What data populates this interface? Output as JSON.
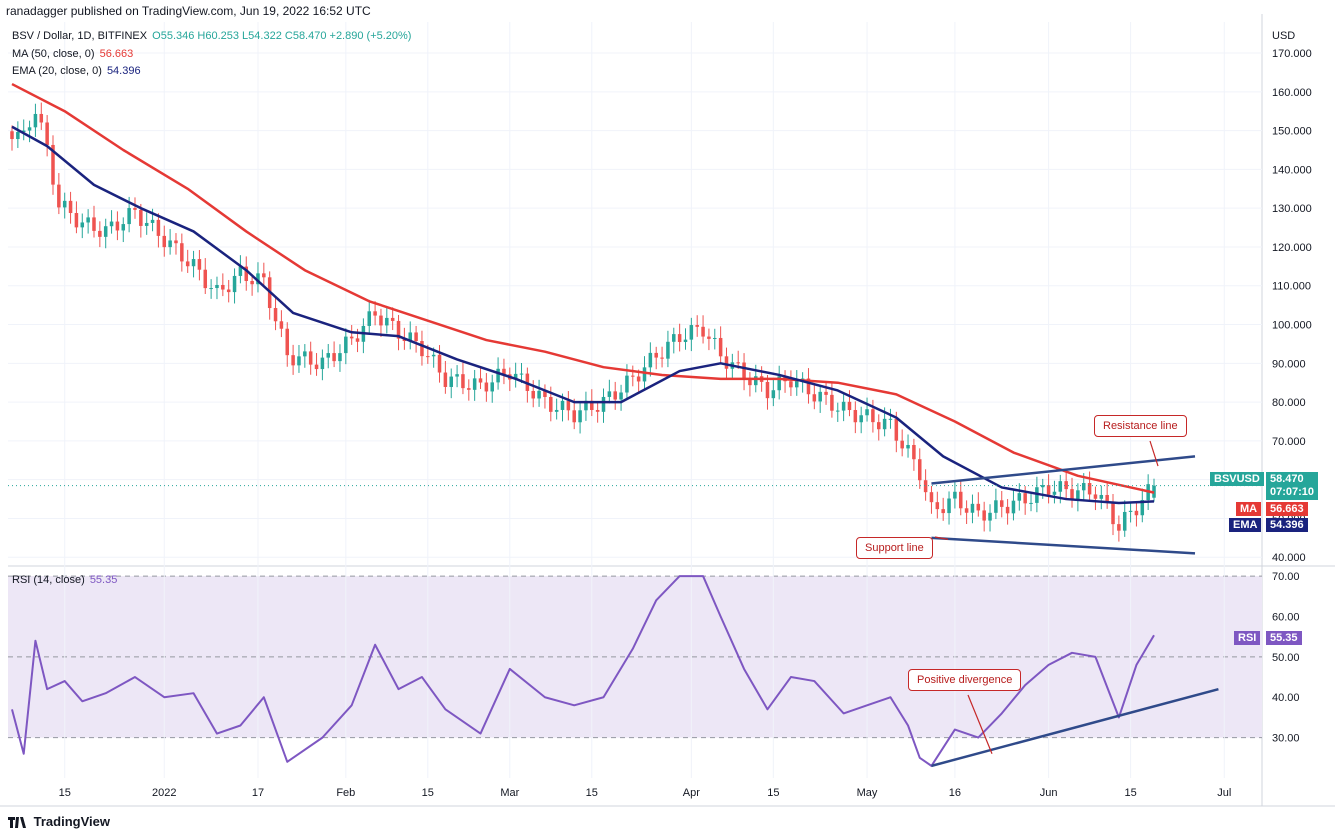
{
  "header": {
    "publisher": "ranadagger published on TradingView.com, Jun 19, 2022 16:52 UTC"
  },
  "legend": {
    "symbol": "BSV / Dollar, 1D, BITFINEX",
    "ohlc": "O55.346 H60.253 L54.322 C58.470 +2.890 (+5.20%)",
    "ma_label": "MA (50, close, 0)",
    "ma_value": "56.663",
    "ema_label": "EMA (20, close, 0)",
    "ema_value": "54.396",
    "rsi_label": "RSI (14, close)",
    "rsi_value": "55.35"
  },
  "footer": {
    "brand": "TradingView"
  },
  "price_labels": {
    "symbol": "BSVUSD",
    "last": "58.470",
    "countdown": "07:07:10",
    "ma_tag": "MA",
    "ma_val": "56.663",
    "ema_tag": "EMA",
    "ema_val": "54.396",
    "rsi_tag": "RSI",
    "rsi_val": "55.35"
  },
  "annotations": {
    "resistance": "Resistance line",
    "support": "Support line",
    "divergence": "Positive divergence"
  },
  "colors": {
    "up": "#26a69a",
    "down": "#ef5350",
    "ma": "#e53935",
    "ema": "#1a237e",
    "rsi": "#7e57c2",
    "rsi_band": "#ede7f6",
    "trendline": "#2f4a8a",
    "grid": "#f0f3fa"
  },
  "chart_data": [
    {
      "type": "candlestick",
      "title": "BSV / Dollar, 1D, BITFINEX",
      "currency": "USD",
      "ylim": [
        38,
        178
      ],
      "y_ticks": [
        "170.000",
        "160.000",
        "150.000",
        "140.000",
        "130.000",
        "120.000",
        "110.000",
        "100.000",
        "90.000",
        "80.000",
        "70.000",
        "60.000",
        "50.000",
        "40.000"
      ],
      "x_ticks": [
        "15",
        "2022",
        "17",
        "Feb",
        "15",
        "Mar",
        "15",
        "Apr",
        "15",
        "May",
        "16",
        "Jun",
        "15",
        "Jul"
      ],
      "close_anchors": [
        [
          "2021-12-06",
          150
        ],
        [
          "2021-12-08",
          148
        ],
        [
          "2021-12-10",
          156
        ],
        [
          "2021-12-12",
          145
        ],
        [
          "2021-12-14",
          131
        ],
        [
          "2021-12-18",
          126
        ],
        [
          "2021-12-22",
          124
        ],
        [
          "2021-12-27",
          129
        ],
        [
          "2022-01-01",
          122
        ],
        [
          "2022-01-06",
          115
        ],
        [
          "2022-01-10",
          108
        ],
        [
          "2022-01-14",
          113
        ],
        [
          "2022-01-18",
          111
        ],
        [
          "2022-01-22",
          92
        ],
        [
          "2022-01-28",
          90
        ],
        [
          "2022-02-02",
          96
        ],
        [
          "2022-02-06",
          103
        ],
        [
          "2022-02-10",
          98
        ],
        [
          "2022-02-14",
          94
        ],
        [
          "2022-02-18",
          86
        ],
        [
          "2022-02-24",
          84
        ],
        [
          "2022-03-01",
          88
        ],
        [
          "2022-03-07",
          80
        ],
        [
          "2022-03-12",
          77
        ],
        [
          "2022-03-17",
          80
        ],
        [
          "2022-03-22",
          86
        ],
        [
          "2022-03-26",
          92
        ],
        [
          "2022-03-30",
          97
        ],
        [
          "2022-04-03",
          99
        ],
        [
          "2022-04-06",
          92
        ],
        [
          "2022-04-10",
          87
        ],
        [
          "2022-04-14",
          83
        ],
        [
          "2022-04-18",
          86
        ],
        [
          "2022-04-22",
          82
        ],
        [
          "2022-04-27",
          78
        ],
        [
          "2022-05-01",
          76
        ],
        [
          "2022-05-05",
          74
        ],
        [
          "2022-05-08",
          67
        ],
        [
          "2022-05-10",
          62
        ],
        [
          "2022-05-12",
          52
        ],
        [
          "2022-05-16",
          55
        ],
        [
          "2022-05-20",
          51
        ],
        [
          "2022-05-24",
          53
        ],
        [
          "2022-05-28",
          55
        ],
        [
          "2022-06-01",
          58
        ],
        [
          "2022-06-05",
          57
        ],
        [
          "2022-06-09",
          57
        ],
        [
          "2022-06-13",
          48
        ],
        [
          "2022-06-16",
          53
        ],
        [
          "2022-06-19",
          58.47
        ]
      ],
      "series": [
        {
          "name": "MA (50, close, 0)",
          "style": "line",
          "points": [
            [
              "2021-12-06",
              162
            ],
            [
              "2021-12-15",
              155
            ],
            [
              "2021-12-25",
              145
            ],
            [
              "2022-01-05",
              135
            ],
            [
              "2022-01-15",
              124
            ],
            [
              "2022-01-25",
              114
            ],
            [
              "2022-02-05",
              106
            ],
            [
              "2022-02-15",
              101
            ],
            [
              "2022-02-25",
              96
            ],
            [
              "2022-03-07",
              93
            ],
            [
              "2022-03-17",
              89
            ],
            [
              "2022-03-27",
              87
            ],
            [
              "2022-04-06",
              86
            ],
            [
              "2022-04-16",
              86
            ],
            [
              "2022-04-26",
              85
            ],
            [
              "2022-05-06",
              82
            ],
            [
              "2022-05-16",
              75
            ],
            [
              "2022-05-26",
              67
            ],
            [
              "2022-06-06",
              61
            ],
            [
              "2022-06-19",
              56.663
            ]
          ]
        },
        {
          "name": "EMA (20, close, 0)",
          "style": "line",
          "points": [
            [
              "2021-12-06",
              151
            ],
            [
              "2021-12-12",
              146
            ],
            [
              "2021-12-20",
              136
            ],
            [
              "2021-12-28",
              130
            ],
            [
              "2022-01-06",
              124
            ],
            [
              "2022-01-15",
              114
            ],
            [
              "2022-01-23",
              103
            ],
            [
              "2022-02-02",
              98
            ],
            [
              "2022-02-10",
              97
            ],
            [
              "2022-02-20",
              91
            ],
            [
              "2022-03-02",
              86
            ],
            [
              "2022-03-12",
              80
            ],
            [
              "2022-03-20",
              80
            ],
            [
              "2022-03-30",
              88
            ],
            [
              "2022-04-06",
              90
            ],
            [
              "2022-04-16",
              87
            ],
            [
              "2022-04-26",
              83
            ],
            [
              "2022-05-06",
              76
            ],
            [
              "2022-05-14",
              66
            ],
            [
              "2022-05-24",
              58
            ],
            [
              "2022-06-04",
              55
            ],
            [
              "2022-06-13",
              54
            ],
            [
              "2022-06-19",
              54.396
            ]
          ]
        },
        {
          "name": "Resistance line",
          "style": "trendline",
          "points": [
            [
              "2022-05-12",
              59
            ],
            [
              "2022-06-26",
              66
            ]
          ]
        },
        {
          "name": "Support line",
          "style": "trendline",
          "points": [
            [
              "2022-05-12",
              45
            ],
            [
              "2022-06-26",
              41
            ]
          ]
        }
      ]
    },
    {
      "type": "line",
      "title": "RSI (14, close)",
      "ylim": [
        20,
        72
      ],
      "y_ticks": [
        "70.00",
        "60.00",
        "50.00",
        "40.00",
        "30.00"
      ],
      "band": [
        30,
        70
      ],
      "series": [
        {
          "name": "RSI (14, close)",
          "points": [
            [
              "2021-12-06",
              37
            ],
            [
              "2021-12-08",
              26
            ],
            [
              "2021-12-10",
              54
            ],
            [
              "2021-12-12",
              42
            ],
            [
              "2021-12-15",
              44
            ],
            [
              "2021-12-18",
              39
            ],
            [
              "2021-12-22",
              41
            ],
            [
              "2021-12-27",
              45
            ],
            [
              "2022-01-01",
              40
            ],
            [
              "2022-01-06",
              41
            ],
            [
              "2022-01-10",
              31
            ],
            [
              "2022-01-14",
              33
            ],
            [
              "2022-01-18",
              40
            ],
            [
              "2022-01-22",
              24
            ],
            [
              "2022-01-28",
              30
            ],
            [
              "2022-02-02",
              38
            ],
            [
              "2022-02-06",
              53
            ],
            [
              "2022-02-10",
              42
            ],
            [
              "2022-02-14",
              45
            ],
            [
              "2022-02-18",
              37
            ],
            [
              "2022-02-24",
              31
            ],
            [
              "2022-03-01",
              47
            ],
            [
              "2022-03-07",
              40
            ],
            [
              "2022-03-12",
              38
            ],
            [
              "2022-03-17",
              40
            ],
            [
              "2022-03-22",
              52
            ],
            [
              "2022-03-26",
              64
            ],
            [
              "2022-03-30",
              70
            ],
            [
              "2022-04-03",
              70
            ],
            [
              "2022-04-06",
              60
            ],
            [
              "2022-04-10",
              47
            ],
            [
              "2022-04-14",
              37
            ],
            [
              "2022-04-18",
              45
            ],
            [
              "2022-04-22",
              44
            ],
            [
              "2022-04-27",
              36
            ],
            [
              "2022-05-01",
              38
            ],
            [
              "2022-05-05",
              40
            ],
            [
              "2022-05-08",
              33
            ],
            [
              "2022-05-10",
              25
            ],
            [
              "2022-05-12",
              23
            ],
            [
              "2022-05-16",
              32
            ],
            [
              "2022-05-20",
              30
            ],
            [
              "2022-05-24",
              36
            ],
            [
              "2022-05-28",
              43
            ],
            [
              "2022-06-01",
              48
            ],
            [
              "2022-06-05",
              51
            ],
            [
              "2022-06-09",
              50
            ],
            [
              "2022-06-13",
              35
            ],
            [
              "2022-06-16",
              48
            ],
            [
              "2022-06-19",
              55.35
            ]
          ]
        },
        {
          "name": "Divergence trendline",
          "style": "trendline",
          "points": [
            [
              "2022-05-12",
              23
            ],
            [
              "2022-06-30",
              42
            ]
          ]
        }
      ]
    }
  ]
}
